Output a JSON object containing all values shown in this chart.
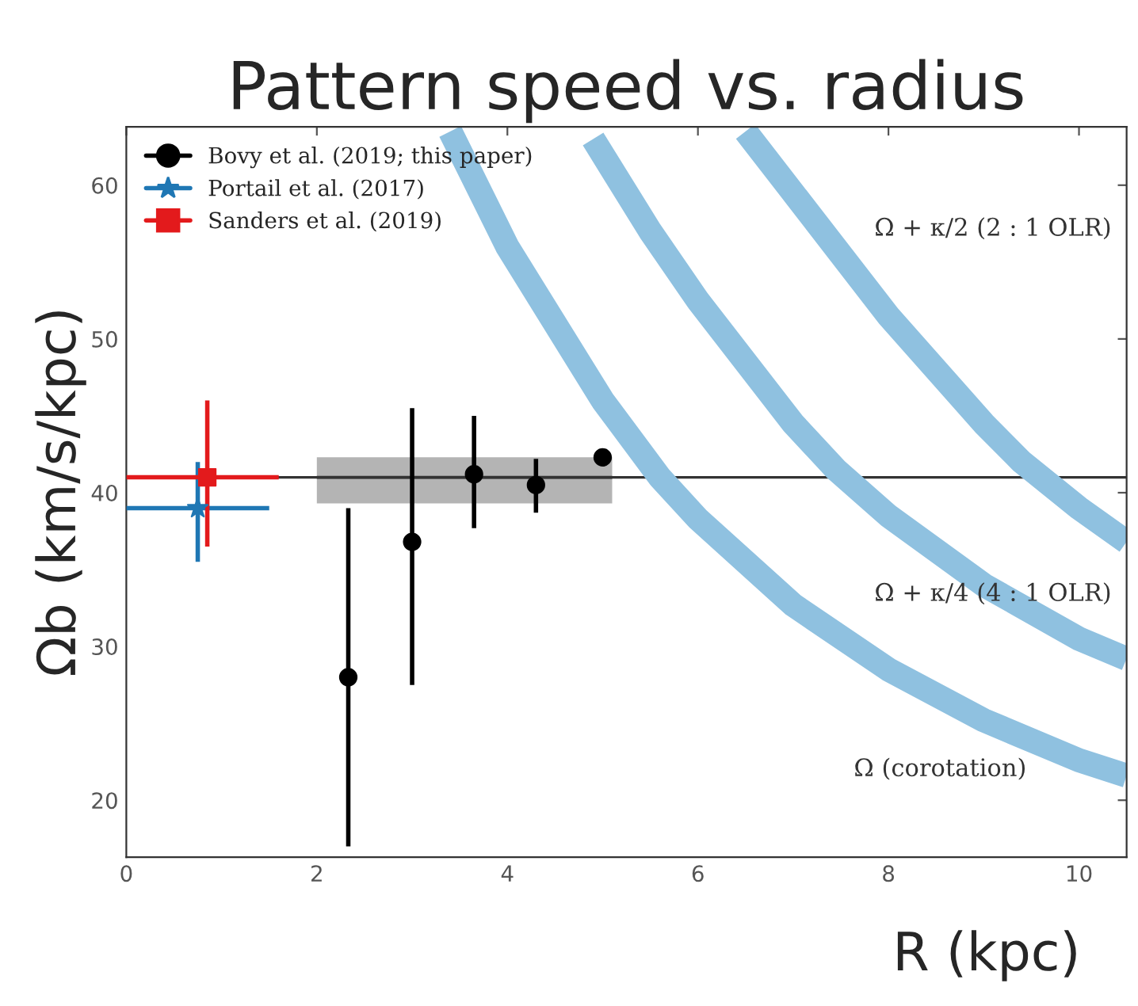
{
  "chart_data": {
    "type": "scatter",
    "title": "Pattern speed vs. radius",
    "xlabel": "R (kpc)",
    "ylabel": "Ωb (km/s/kpc)",
    "xlim": [
      0,
      10.5
    ],
    "ylim": [
      16.3,
      63.8
    ],
    "xticks": [
      0,
      2,
      4,
      6,
      8,
      10
    ],
    "yticks": [
      20,
      30,
      40,
      50,
      60
    ],
    "grid": false,
    "legend": "top left",
    "series": [
      {
        "type": "line",
        "color": "#8fc1e0",
        "marker": "none",
        "x": [
          3.4,
          4,
          5,
          5.6,
          6,
          7,
          8,
          9,
          10,
          10.5
        ],
        "values": [
          63.5,
          56,
          46,
          41,
          38.3,
          32.7,
          28.5,
          25.2,
          22.6,
          21.6
        ]
      },
      {
        "type": "line",
        "color": "#8fc1e0",
        "marker": "none",
        "x": [
          4.9,
          5.5,
          6,
          7,
          7.45,
          8,
          9,
          10,
          10.5
        ],
        "values": [
          63,
          57,
          52.5,
          44.5,
          41.5,
          38.5,
          34,
          30.5,
          29.2
        ]
      },
      {
        "type": "line",
        "color": "#8fc1e0",
        "marker": "none",
        "x": [
          6.5,
          7,
          8,
          9,
          9.4,
          10,
          10.5
        ],
        "values": [
          63.5,
          59.5,
          51.5,
          44.5,
          42,
          39,
          36.8
        ]
      },
      {
        "type": "line",
        "color": "#333333",
        "marker": "none",
        "x": [
          2,
          5.1
        ],
        "values": [
          41,
          41
        ],
        "lower": [
          39.3,
          39.3
        ],
        "upper": [
          42.3,
          42.3
        ]
      },
      {
        "name": "Bovy et al. (2019; this paper)",
        "color": "#000000",
        "marker": "circle",
        "x": [
          2.33,
          3.0,
          3.65,
          4.3,
          5.0
        ],
        "values": [
          28.0,
          36.8,
          41.2,
          40.5,
          42.3
        ],
        "errors": [
          [
            17,
            39
          ],
          [
            27.5,
            45.5
          ],
          [
            37.7,
            45.0
          ],
          [
            38.7,
            42.2
          ],
          null
        ]
      },
      {
        "name": "Portail et al. (2017)",
        "color": "#1f77b4",
        "marker": "star",
        "x": [
          0.75
        ],
        "values": [
          39.0
        ],
        "errors": [
          [
            35.5,
            42.0
          ]
        ],
        "xerrors": [
          [
            0,
            1.5
          ]
        ]
      },
      {
        "name": "Sanders et al. (2019)",
        "color": "#e31a1c",
        "marker": "square",
        "x": [
          0.85
        ],
        "values": [
          41.0
        ],
        "errors": [
          [
            36.5,
            46.0
          ]
        ],
        "xerrors": [
          [
            0,
            1.6
          ]
        ]
      }
    ],
    "ref_lines": [
      {
        "axis": "y",
        "value": 41,
        "color": "#333333",
        "line_style": "solid"
      }
    ],
    "annotations": [
      "Ω + κ/2 (2 : 1 OLR)",
      "Ω + κ/4 (4 : 1 OLR)",
      "Ω (corotation)"
    ]
  }
}
